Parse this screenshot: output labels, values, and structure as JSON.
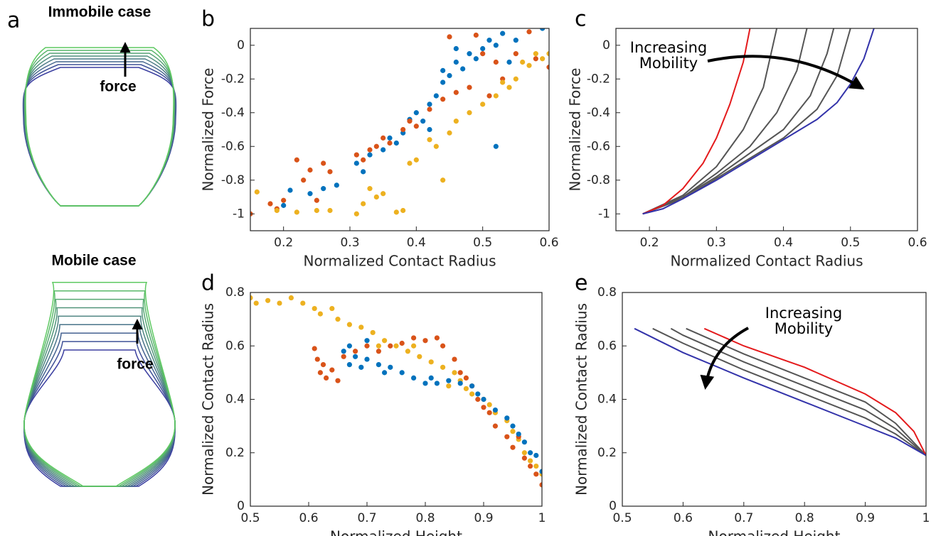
{
  "panel_a": {
    "label": "a",
    "top_title": "Immobile case",
    "top_arrow": "force",
    "bottom_title": "Mobile case",
    "bottom_arrow": "force"
  },
  "chart_data": [
    {
      "type": "scatter",
      "panel_label": "b",
      "xlabel": "Normalized Contact Radius",
      "ylabel": "Normalized Force",
      "xlim": [
        0.15,
        0.6
      ],
      "ylim": [
        -1.1,
        0.1
      ],
      "xticks": [
        0.2,
        0.3,
        0.4,
        0.5,
        0.6
      ],
      "yticks": [
        -1,
        -0.8,
        -0.6,
        -0.4,
        -0.2,
        0
      ],
      "series": [
        {
          "color": "#0072bd",
          "x": [
            0.2,
            0.21,
            0.24,
            0.26,
            0.28,
            0.31,
            0.32,
            0.33,
            0.35,
            0.36,
            0.37,
            0.38,
            0.39,
            0.4,
            0.41,
            0.42,
            0.43,
            0.44,
            0.45,
            0.46,
            0.47,
            0.48,
            0.49,
            0.5,
            0.51,
            0.52,
            0.53,
            0.54,
            0.55,
            0.59,
            0.52,
            0.44,
            0.46,
            0.42
          ],
          "values": [
            -0.95,
            -0.86,
            -0.88,
            -0.85,
            -0.83,
            -0.7,
            -0.75,
            -0.65,
            -0.62,
            -0.55,
            -0.58,
            -0.52,
            -0.44,
            -0.4,
            -0.45,
            -0.35,
            -0.3,
            -0.22,
            -0.18,
            -0.1,
            -0.14,
            -0.05,
            -0.08,
            -0.02,
            0.03,
            0,
            0.07,
            -0.1,
            0.03,
            0.1,
            -0.6,
            -0.15,
            -0.02,
            -0.5
          ]
        },
        {
          "color": "#d95319",
          "x": [
            0.15,
            0.18,
            0.19,
            0.2,
            0.22,
            0.23,
            0.24,
            0.25,
            0.26,
            0.27,
            0.31,
            0.32,
            0.33,
            0.34,
            0.35,
            0.36,
            0.38,
            0.39,
            0.4,
            0.42,
            0.44,
            0.46,
            0.48,
            0.5,
            0.51,
            0.52,
            0.53,
            0.55,
            0.57,
            0.58,
            0.6,
            0.45,
            0.49
          ],
          "values": [
            -1,
            -0.94,
            -0.97,
            -0.92,
            -0.68,
            -0.8,
            -0.74,
            -0.92,
            -0.7,
            -0.75,
            -0.65,
            -0.68,
            -0.62,
            -0.6,
            -0.55,
            -0.58,
            -0.5,
            -0.45,
            -0.48,
            -0.38,
            -0.32,
            -0.28,
            -0.25,
            -0.05,
            -0.3,
            -0.1,
            -0.2,
            -0.05,
            0.08,
            -0.08,
            -0.13,
            0.05,
            0.06
          ]
        },
        {
          "color": "#edb120",
          "x": [
            0.16,
            0.19,
            0.22,
            0.25,
            0.27,
            0.31,
            0.32,
            0.33,
            0.34,
            0.35,
            0.37,
            0.38,
            0.39,
            0.4,
            0.42,
            0.43,
            0.44,
            0.45,
            0.46,
            0.48,
            0.5,
            0.52,
            0.53,
            0.55,
            0.56,
            0.57,
            0.58,
            0.59,
            0.6,
            0.54
          ],
          "values": [
            -0.87,
            -0.98,
            -0.99,
            -0.98,
            -0.98,
            -1,
            -0.94,
            -0.85,
            -0.9,
            -0.88,
            -0.99,
            -0.98,
            -0.7,
            -0.68,
            -0.56,
            -0.6,
            -0.8,
            -0.52,
            -0.45,
            -0.4,
            -0.35,
            -0.3,
            -0.22,
            -0.2,
            -0.1,
            -0.12,
            -0.05,
            -0.08,
            -0.05,
            -0.25
          ]
        }
      ]
    },
    {
      "type": "line",
      "panel_label": "c",
      "xlabel": "Normalized Contact Radius",
      "ylabel": "Normalized Force",
      "xlim": [
        0.15,
        0.6
      ],
      "ylim": [
        -1.1,
        0.1
      ],
      "xticks": [
        0.2,
        0.3,
        0.4,
        0.5,
        0.6
      ],
      "yticks": [
        -1,
        -0.8,
        -0.6,
        -0.4,
        -0.2,
        0
      ],
      "annotation": [
        "Increasing",
        "Mobility"
      ],
      "series": [
        {
          "color": "#555555",
          "x": [
            0.19,
            0.25,
            0.3,
            0.34,
            0.37,
            0.39
          ],
          "values": [
            -1,
            -0.89,
            -0.72,
            -0.5,
            -0.25,
            0.1
          ]
        },
        {
          "color": "#555555",
          "x": [
            0.19,
            0.25,
            0.3,
            0.35,
            0.39,
            0.42,
            0.435
          ],
          "values": [
            -1,
            -0.9,
            -0.76,
            -0.6,
            -0.4,
            -0.15,
            0.1
          ]
        },
        {
          "color": "#555555",
          "x": [
            0.19,
            0.25,
            0.3,
            0.35,
            0.4,
            0.44,
            0.465,
            0.475
          ],
          "values": [
            -1,
            -0.9,
            -0.78,
            -0.64,
            -0.5,
            -0.3,
            -0.05,
            0.1
          ]
        },
        {
          "color": "#555555",
          "x": [
            0.19,
            0.25,
            0.3,
            0.35,
            0.4,
            0.45,
            0.48,
            0.5
          ],
          "values": [
            -1,
            -0.91,
            -0.79,
            -0.67,
            -0.55,
            -0.38,
            -0.18,
            0.1
          ]
        },
        {
          "color": "#e41a1c",
          "x": [
            0.19,
            0.22,
            0.25,
            0.28,
            0.3,
            0.32,
            0.34,
            0.35
          ],
          "values": [
            -1,
            -0.95,
            -0.85,
            -0.7,
            -0.55,
            -0.35,
            -0.1,
            0.1
          ]
        },
        {
          "color": "#3333aa",
          "x": [
            0.19,
            0.22,
            0.25,
            0.3,
            0.35,
            0.4,
            0.45,
            0.48,
            0.5,
            0.52,
            0.535
          ],
          "values": [
            -1,
            -0.97,
            -0.91,
            -0.8,
            -0.68,
            -0.56,
            -0.44,
            -0.34,
            -0.23,
            -0.08,
            0.1
          ]
        }
      ]
    },
    {
      "type": "scatter",
      "panel_label": "d",
      "xlabel": "Normalized Height",
      "ylabel": "Normalized Contact Radius",
      "xlim": [
        0.5,
        1
      ],
      "ylim": [
        0,
        0.8
      ],
      "xticks": [
        0.5,
        0.6,
        0.7,
        0.8,
        0.9,
        1
      ],
      "yticks": [
        0,
        0.2,
        0.4,
        0.6,
        0.8
      ],
      "series": [
        {
          "color": "#edb120",
          "x": [
            0.5,
            0.51,
            0.53,
            0.55,
            0.57,
            0.59,
            0.61,
            0.62,
            0.64,
            0.65,
            0.67,
            0.69,
            0.71,
            0.73,
            0.75,
            0.77,
            0.79,
            0.81,
            0.83,
            0.85,
            0.86,
            0.87,
            0.88,
            0.9,
            0.91,
            0.92,
            0.94,
            0.95,
            0.96,
            0.97,
            0.98,
            0.99,
            1,
            0.72,
            0.78,
            0.84
          ],
          "values": [
            0.78,
            0.76,
            0.77,
            0.76,
            0.78,
            0.76,
            0.74,
            0.72,
            0.74,
            0.7,
            0.68,
            0.67,
            0.65,
            0.62,
            0.6,
            0.58,
            0.56,
            0.54,
            0.52,
            0.5,
            0.47,
            0.44,
            0.42,
            0.4,
            0.38,
            0.35,
            0.32,
            0.28,
            0.25,
            0.2,
            0.17,
            0.15,
            0.12,
            0.6,
            0.6,
            0.45
          ]
        },
        {
          "color": "#d95319",
          "x": [
            0.61,
            0.615,
            0.62,
            0.625,
            0.63,
            0.64,
            0.65,
            0.66,
            0.68,
            0.7,
            0.72,
            0.74,
            0.76,
            0.78,
            0.8,
            0.82,
            0.83,
            0.85,
            0.86,
            0.87,
            0.88,
            0.89,
            0.9,
            0.91,
            0.92,
            0.94,
            0.95,
            0.96,
            0.97,
            0.98,
            0.99,
            1
          ],
          "values": [
            0.59,
            0.55,
            0.5,
            0.53,
            0.48,
            0.51,
            0.47,
            0.56,
            0.58,
            0.6,
            0.58,
            0.6,
            0.61,
            0.63,
            0.62,
            0.63,
            0.6,
            0.55,
            0.5,
            0.48,
            0.45,
            0.4,
            0.37,
            0.35,
            0.3,
            0.26,
            0.22,
            0.26,
            0.18,
            0.15,
            0.12,
            0.08
          ]
        },
        {
          "color": "#0072bd",
          "x": [
            0.66,
            0.67,
            0.68,
            0.69,
            0.7,
            0.72,
            0.73,
            0.74,
            0.76,
            0.78,
            0.8,
            0.81,
            0.82,
            0.84,
            0.86,
            0.88,
            0.89,
            0.9,
            0.92,
            0.94,
            0.95,
            0.96,
            0.97,
            0.98,
            0.99,
            1,
            0.7,
            0.67
          ],
          "values": [
            0.58,
            0.53,
            0.56,
            0.52,
            0.55,
            0.53,
            0.5,
            0.52,
            0.5,
            0.48,
            0.46,
            0.48,
            0.46,
            0.47,
            0.46,
            0.45,
            0.42,
            0.4,
            0.36,
            0.33,
            0.3,
            0.27,
            0.24,
            0.2,
            0.19,
            0.13,
            0.62,
            0.6
          ]
        }
      ]
    },
    {
      "type": "line",
      "panel_label": "e",
      "xlabel": "Normalized Height",
      "ylabel": "Normalized Contact Radius",
      "xlim": [
        0.5,
        1
      ],
      "ylim": [
        0,
        0.8
      ],
      "xticks": [
        0.5,
        0.6,
        0.7,
        0.8,
        0.9,
        1
      ],
      "yticks": [
        0,
        0.2,
        0.4,
        0.6,
        0.8
      ],
      "annotation": [
        "Increasing",
        "Mobility"
      ],
      "series": [
        {
          "color": "#555555",
          "x": [
            0.55,
            0.6,
            0.7,
            0.8,
            0.9,
            0.95,
            1
          ],
          "values": [
            0.665,
            0.61,
            0.51,
            0.42,
            0.33,
            0.27,
            0.19
          ]
        },
        {
          "color": "#555555",
          "x": [
            0.58,
            0.6,
            0.7,
            0.8,
            0.9,
            0.95,
            1
          ],
          "values": [
            0.665,
            0.64,
            0.54,
            0.45,
            0.36,
            0.29,
            0.19
          ]
        },
        {
          "color": "#555555",
          "x": [
            0.605,
            0.7,
            0.8,
            0.9,
            0.95,
            1
          ],
          "values": [
            0.665,
            0.57,
            0.48,
            0.39,
            0.31,
            0.19
          ]
        },
        {
          "color": "#e41a1c",
          "x": [
            0.635,
            0.7,
            0.8,
            0.9,
            0.95,
            0.98,
            1
          ],
          "values": [
            0.665,
            0.6,
            0.52,
            0.42,
            0.35,
            0.28,
            0.19
          ]
        },
        {
          "color": "#3333aa",
          "x": [
            0.52,
            0.6,
            0.7,
            0.8,
            0.9,
            0.95,
            1
          ],
          "values": [
            0.665,
            0.575,
            0.48,
            0.39,
            0.3,
            0.255,
            0.19
          ]
        }
      ]
    }
  ]
}
